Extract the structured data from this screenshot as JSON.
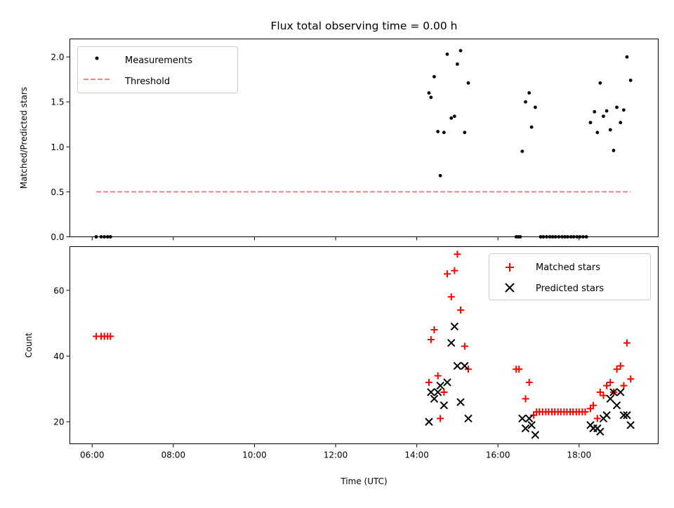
{
  "chart_data": [
    {
      "type": "scatter",
      "title": "Flux total observing time = 0.00 h",
      "xlabel": "",
      "ylabel": "Matched/Predicted stars",
      "xlim": [
        5.45,
        19.95
      ],
      "ylim": [
        0,
        2.2
      ],
      "yticks": [
        "0.0",
        "0.5",
        "1.0",
        "1.5",
        "2.0"
      ],
      "ytick_values": [
        0,
        0.5,
        1.0,
        1.5,
        2.0
      ],
      "grid": false,
      "legend_position": "upper-left",
      "series": [
        {
          "name": "Measurements",
          "marker": "dot",
          "color": "#000000",
          "points": [
            [
              6.1,
              0
            ],
            [
              6.22,
              0
            ],
            [
              6.3,
              0
            ],
            [
              6.38,
              0
            ],
            [
              6.45,
              0
            ],
            [
              14.3,
              1.6
            ],
            [
              14.35,
              1.55
            ],
            [
              14.43,
              1.78
            ],
            [
              14.52,
              1.17
            ],
            [
              14.58,
              0.68
            ],
            [
              14.67,
              1.16
            ],
            [
              14.75,
              2.03
            ],
            [
              14.85,
              1.32
            ],
            [
              14.93,
              1.34
            ],
            [
              15.0,
              1.92
            ],
            [
              15.08,
              2.07
            ],
            [
              15.18,
              1.16
            ],
            [
              15.27,
              1.71
            ],
            [
              16.45,
              0
            ],
            [
              16.5,
              0
            ],
            [
              16.55,
              0
            ],
            [
              16.6,
              0.95
            ],
            [
              16.68,
              1.5
            ],
            [
              16.77,
              1.6
            ],
            [
              16.83,
              1.22
            ],
            [
              16.92,
              1.44
            ],
            [
              17.05,
              0
            ],
            [
              17.12,
              0
            ],
            [
              17.2,
              0
            ],
            [
              17.28,
              0
            ],
            [
              17.35,
              0
            ],
            [
              17.42,
              0
            ],
            [
              17.5,
              0
            ],
            [
              17.58,
              0
            ],
            [
              17.65,
              0
            ],
            [
              17.72,
              0
            ],
            [
              17.8,
              0
            ],
            [
              17.87,
              0
            ],
            [
              17.95,
              0
            ],
            [
              18.02,
              0
            ],
            [
              18.1,
              0
            ],
            [
              18.18,
              0
            ],
            [
              18.28,
              1.27
            ],
            [
              18.38,
              1.39
            ],
            [
              18.45,
              1.16
            ],
            [
              18.52,
              1.71
            ],
            [
              18.6,
              1.34
            ],
            [
              18.68,
              1.4
            ],
            [
              18.77,
              1.19
            ],
            [
              18.85,
              0.96
            ],
            [
              18.93,
              1.44
            ],
            [
              19.02,
              1.27
            ],
            [
              19.1,
              1.41
            ],
            [
              19.18,
              2.0
            ],
            [
              19.27,
              1.74
            ]
          ]
        },
        {
          "name": "Threshold",
          "marker": "dashed-line",
          "color": "#ff7f7f",
          "x": [
            6.1,
            19.27
          ],
          "y": [
            0.5,
            0.5
          ]
        }
      ]
    },
    {
      "type": "scatter",
      "title": "",
      "xlabel": "Time (UTC)",
      "ylabel": "Count",
      "xlim": [
        5.45,
        19.95
      ],
      "ylim": [
        13.3,
        73.3
      ],
      "xticks": [
        "06:00",
        "08:00",
        "10:00",
        "12:00",
        "14:00",
        "16:00",
        "18:00"
      ],
      "xtick_values": [
        6,
        8,
        10,
        12,
        14,
        16,
        18
      ],
      "yticks": [
        "20",
        "40",
        "60"
      ],
      "ytick_values": [
        20,
        40,
        60
      ],
      "grid": false,
      "legend_position": "upper-right",
      "series": [
        {
          "name": "Matched stars",
          "marker": "plus",
          "color": "#ff0000",
          "points": [
            [
              6.1,
              46
            ],
            [
              6.22,
              46
            ],
            [
              6.3,
              46
            ],
            [
              6.38,
              46
            ],
            [
              6.45,
              46
            ],
            [
              14.3,
              32
            ],
            [
              14.35,
              45
            ],
            [
              14.43,
              48
            ],
            [
              14.52,
              34
            ],
            [
              14.58,
              21
            ],
            [
              14.67,
              29
            ],
            [
              14.75,
              65
            ],
            [
              14.85,
              58
            ],
            [
              14.93,
              66
            ],
            [
              15.0,
              71
            ],
            [
              15.08,
              54
            ],
            [
              15.18,
              43
            ],
            [
              15.27,
              36
            ],
            [
              16.45,
              36
            ],
            [
              16.52,
              36
            ],
            [
              16.68,
              27
            ],
            [
              16.77,
              32
            ],
            [
              16.88,
              22
            ],
            [
              16.95,
              23
            ],
            [
              17.02,
              23
            ],
            [
              17.1,
              23
            ],
            [
              17.18,
              23
            ],
            [
              17.25,
              23
            ],
            [
              17.33,
              23
            ],
            [
              17.4,
              23
            ],
            [
              17.48,
              23
            ],
            [
              17.55,
              23
            ],
            [
              17.63,
              23
            ],
            [
              17.7,
              23
            ],
            [
              17.78,
              23
            ],
            [
              17.85,
              23
            ],
            [
              17.93,
              23
            ],
            [
              18.0,
              23
            ],
            [
              18.08,
              23
            ],
            [
              18.15,
              23
            ],
            [
              18.28,
              24
            ],
            [
              18.35,
              25
            ],
            [
              18.45,
              21
            ],
            [
              18.52,
              29
            ],
            [
              18.6,
              28
            ],
            [
              18.68,
              31
            ],
            [
              18.77,
              32
            ],
            [
              18.85,
              29
            ],
            [
              18.93,
              36
            ],
            [
              19.02,
              37
            ],
            [
              19.1,
              31
            ],
            [
              19.18,
              44
            ],
            [
              19.27,
              33
            ]
          ]
        },
        {
          "name": "Predicted stars",
          "marker": "x",
          "color": "#000000",
          "points": [
            [
              14.3,
              20
            ],
            [
              14.35,
              29
            ],
            [
              14.43,
              27
            ],
            [
              14.52,
              29
            ],
            [
              14.58,
              31
            ],
            [
              14.67,
              25
            ],
            [
              14.75,
              32
            ],
            [
              14.85,
              44
            ],
            [
              14.93,
              49
            ],
            [
              15.0,
              37
            ],
            [
              15.08,
              26
            ],
            [
              15.18,
              37
            ],
            [
              15.27,
              21
            ],
            [
              16.6,
              21
            ],
            [
              16.68,
              18
            ],
            [
              16.77,
              21
            ],
            [
              16.83,
              19
            ],
            [
              16.92,
              16
            ],
            [
              18.28,
              19
            ],
            [
              18.35,
              18
            ],
            [
              18.45,
              18
            ],
            [
              18.52,
              17
            ],
            [
              18.6,
              21
            ],
            [
              18.68,
              22
            ],
            [
              18.77,
              27
            ],
            [
              18.85,
              29
            ],
            [
              18.93,
              25
            ],
            [
              19.02,
              29
            ],
            [
              19.1,
              22
            ],
            [
              19.18,
              22
            ],
            [
              19.27,
              19
            ]
          ]
        }
      ]
    }
  ]
}
